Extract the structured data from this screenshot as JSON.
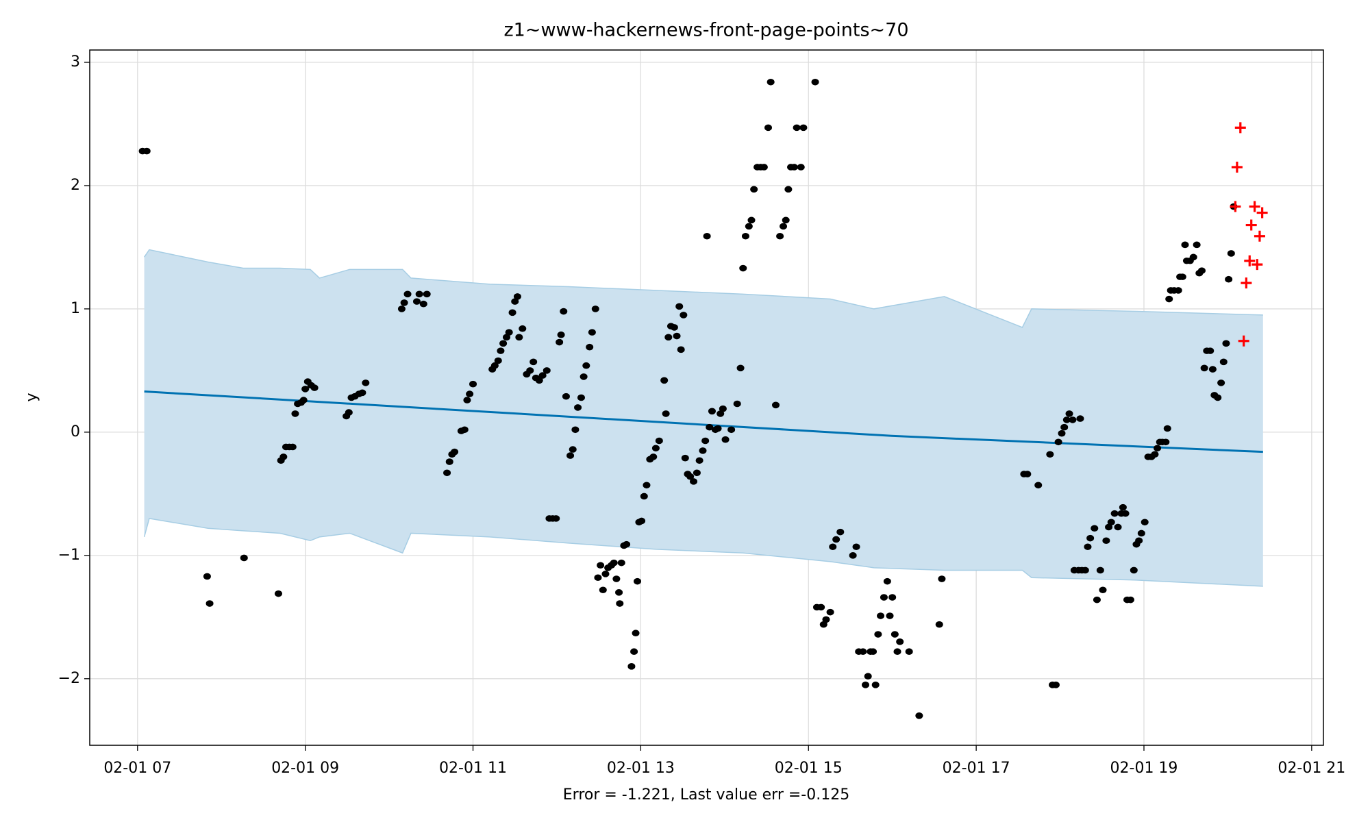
{
  "chart_data": {
    "type": "scatter",
    "title": "z1~www-hackernews-front-page-points~70",
    "xlabel": "Error = -1.221, Last value err =-0.125",
    "ylabel": "y",
    "xlim": [
      6.43,
      21.14
    ],
    "ylim": [
      -2.54,
      3.1
    ],
    "xticks": [
      {
        "value": 7,
        "label": "02-01 07"
      },
      {
        "value": 9,
        "label": "02-01 09"
      },
      {
        "value": 11,
        "label": "02-01 11"
      },
      {
        "value": 13,
        "label": "02-01 13"
      },
      {
        "value": 15,
        "label": "02-01 15"
      },
      {
        "value": 17,
        "label": "02-01 17"
      },
      {
        "value": 19,
        "label": "02-01 19"
      },
      {
        "value": 21,
        "label": "02-01 21"
      }
    ],
    "yticks": [
      {
        "value": -2,
        "label": "−2"
      },
      {
        "value": -1,
        "label": "−1"
      },
      0,
      1,
      2,
      3
    ],
    "grid": true,
    "band": {
      "color": "#cce1ef",
      "edge_color": "#a6cde4",
      "x": [
        7.08,
        7.14,
        7.84,
        8.26,
        8.7,
        9.06,
        9.17,
        9.53,
        10.16,
        10.26,
        11.2,
        12.14,
        13.18,
        14.22,
        15.26,
        15.78,
        16.62,
        17.55,
        17.66,
        18.91,
        20.42
      ],
      "upper": [
        1.42,
        1.48,
        1.38,
        1.33,
        1.33,
        1.32,
        1.25,
        1.32,
        1.32,
        1.25,
        1.2,
        1.18,
        1.15,
        1.12,
        1.08,
        1.0,
        1.1,
        0.85,
        1.0,
        0.98,
        0.95
      ],
      "lower": [
        -0.85,
        -0.7,
        -0.78,
        -0.8,
        -0.82,
        -0.88,
        -0.85,
        -0.82,
        -0.98,
        -0.82,
        -0.85,
        -0.9,
        -0.95,
        -0.98,
        -1.05,
        -1.1,
        -1.12,
        -1.12,
        -1.18,
        -1.2,
        -1.25
      ]
    },
    "trend": {
      "color": "#0072b2",
      "x": [
        7.08,
        15.99,
        20.42
      ],
      "values": [
        0.33,
        -0.03,
        -0.16
      ]
    },
    "series": [
      {
        "color": "#000000",
        "marker": "dot",
        "x": [
          7.06,
          7.11,
          7.83,
          7.86,
          8.27,
          8.68,
          8.71,
          8.74,
          8.77,
          8.81,
          8.85,
          8.88,
          8.91,
          8.95,
          8.98,
          9.0,
          9.03,
          9.07,
          9.11,
          9.49,
          9.52,
          9.55,
          9.59,
          9.64,
          9.68,
          9.72,
          10.15,
          10.18,
          10.22,
          10.33,
          10.36,
          10.41,
          10.45,
          10.69,
          10.72,
          10.75,
          10.78,
          10.86,
          10.9,
          10.93,
          10.96,
          11.0,
          11.23,
          11.26,
          11.3,
          11.33,
          11.36,
          11.4,
          11.43,
          11.47,
          11.5,
          11.53,
          11.55,
          11.59,
          11.64,
          11.68,
          11.72,
          11.75,
          11.79,
          11.83,
          11.88,
          11.91,
          11.95,
          11.99,
          12.03,
          12.05,
          12.08,
          12.11,
          12.16,
          12.19,
          12.22,
          12.25,
          12.29,
          12.32,
          12.35,
          12.39,
          12.42,
          12.46,
          12.49,
          12.52,
          12.55,
          12.58,
          12.61,
          12.65,
          12.68,
          12.71,
          12.74,
          12.75,
          12.77,
          12.8,
          12.83,
          12.89,
          12.92,
          12.94,
          12.96,
          12.98,
          13.01,
          13.04,
          13.07,
          13.11,
          13.15,
          13.18,
          13.22,
          13.28,
          13.3,
          13.33,
          13.36,
          13.4,
          13.43,
          13.46,
          13.48,
          13.51,
          13.53,
          13.56,
          13.59,
          13.63,
          13.67,
          13.7,
          13.74,
          13.77,
          13.79,
          13.82,
          13.85,
          13.89,
          13.92,
          13.95,
          13.98,
          14.01,
          14.08,
          14.15,
          14.19,
          14.22,
          14.25,
          14.29,
          14.32,
          14.35,
          14.39,
          14.43,
          14.47,
          14.52,
          14.55,
          14.61,
          14.66,
          14.7,
          14.73,
          14.76,
          14.79,
          14.83,
          14.86,
          14.91,
          14.94,
          15.08,
          15.1,
          15.15,
          15.18,
          15.21,
          15.26,
          15.29,
          15.33,
          15.38,
          15.53,
          15.57,
          15.6,
          15.65,
          15.68,
          15.71,
          15.74,
          15.77,
          15.8,
          15.83,
          15.86,
          15.9,
          15.94,
          15.97,
          16.0,
          16.03,
          16.06,
          16.09,
          16.2,
          16.32,
          16.56,
          16.59,
          17.57,
          17.61,
          17.74,
          17.88,
          17.91,
          17.95,
          17.98,
          18.02,
          18.05,
          18.08,
          18.11,
          18.15,
          18.17,
          18.22,
          18.24,
          18.26,
          18.3,
          18.33,
          18.36,
          18.41,
          18.44,
          18.48,
          18.51,
          18.55,
          18.58,
          18.61,
          18.65,
          18.69,
          18.73,
          18.75,
          18.78,
          18.8,
          18.84,
          18.88,
          18.91,
          18.94,
          18.97,
          19.01,
          19.05,
          19.09,
          19.13,
          19.16,
          19.19,
          19.22,
          19.26,
          19.28,
          19.3,
          19.32,
          19.36,
          19.41,
          19.43,
          19.46,
          19.49,
          19.51,
          19.55,
          19.59,
          19.63,
          19.66,
          19.69,
          19.72,
          19.75,
          19.79,
          19.82,
          19.84,
          19.88,
          19.92,
          19.95,
          19.98,
          20.01,
          20.04,
          20.07
        ],
        "values": [
          2.28,
          2.28,
          -1.17,
          -1.39,
          -1.02,
          -1.31,
          -0.23,
          -0.2,
          -0.12,
          -0.12,
          -0.12,
          0.15,
          0.23,
          0.24,
          0.26,
          0.35,
          0.41,
          0.38,
          0.36,
          0.13,
          0.16,
          0.28,
          0.29,
          0.31,
          0.32,
          0.4,
          1.0,
          1.05,
          1.12,
          1.06,
          1.12,
          1.04,
          1.12,
          -0.33,
          -0.24,
          -0.18,
          -0.16,
          0.01,
          0.02,
          0.26,
          0.31,
          0.39,
          0.51,
          0.54,
          0.58,
          0.66,
          0.72,
          0.77,
          0.81,
          0.97,
          1.06,
          1.1,
          0.77,
          0.84,
          0.47,
          0.5,
          0.57,
          0.44,
          0.42,
          0.46,
          0.5,
          -0.7,
          -0.7,
          -0.7,
          0.73,
          0.79,
          0.98,
          0.29,
          -0.19,
          -0.14,
          0.02,
          0.2,
          0.28,
          0.45,
          0.54,
          0.69,
          0.81,
          1.0,
          -1.18,
          -1.08,
          -1.28,
          -1.15,
          -1.1,
          -1.08,
          -1.06,
          -1.19,
          -1.3,
          -1.39,
          -1.06,
          -0.92,
          -0.91,
          -1.9,
          -1.78,
          -1.63,
          -1.21,
          -0.73,
          -0.72,
          -0.52,
          -0.43,
          -0.22,
          -0.2,
          -0.13,
          -0.07,
          0.42,
          0.15,
          0.77,
          0.86,
          0.85,
          0.78,
          1.02,
          0.67,
          0.95,
          -0.21,
          -0.34,
          -0.36,
          -0.4,
          -0.33,
          -0.23,
          -0.15,
          -0.07,
          1.59,
          0.04,
          0.17,
          0.02,
          0.03,
          0.15,
          0.19,
          -0.06,
          0.02,
          0.23,
          0.52,
          1.33,
          1.59,
          1.67,
          1.72,
          1.97,
          2.15,
          2.15,
          2.15,
          2.47,
          2.84,
          0.22,
          1.59,
          1.67,
          1.72,
          1.97,
          2.15,
          2.15,
          2.47,
          2.15,
          2.47,
          2.84,
          -1.42,
          -1.42,
          -1.56,
          -1.52,
          -1.46,
          -0.93,
          -0.87,
          -0.81,
          -1.0,
          -0.93,
          -1.78,
          -1.78,
          -2.05,
          -1.98,
          -1.78,
          -1.78,
          -2.05,
          -1.64,
          -1.49,
          -1.34,
          -1.21,
          -1.49,
          -1.34,
          -1.64,
          -1.78,
          -1.7,
          -1.78,
          -2.3,
          -1.56,
          -1.19,
          -0.34,
          -0.34,
          -0.43,
          -0.18,
          -2.05,
          -2.05,
          -0.08,
          -0.01,
          0.04,
          0.1,
          0.15,
          0.1,
          -1.12,
          -1.12,
          0.11,
          -1.12,
          -1.12,
          -0.93,
          -0.86,
          -0.78,
          -1.36,
          -1.12,
          -1.28,
          -0.88,
          -0.77,
          -0.73,
          -0.66,
          -0.77,
          -0.66,
          -0.61,
          -0.66,
          -1.36,
          -1.36,
          -1.12,
          -0.91,
          -0.88,
          -0.82,
          -0.73,
          -0.2,
          -0.2,
          -0.18,
          -0.13,
          -0.08,
          -0.08,
          -0.08,
          0.03,
          1.08,
          1.15,
          1.15,
          1.15,
          1.26,
          1.26,
          1.52,
          1.39,
          1.39,
          1.42,
          1.52,
          1.29,
          1.31,
          0.52,
          0.66,
          0.66,
          0.51,
          0.3,
          0.28,
          0.4,
          0.57,
          0.72,
          1.24,
          1.45,
          1.83
        ]
      },
      {
        "color": "#ff0000",
        "marker": "plus",
        "x": [
          20.09,
          20.11,
          20.15,
          20.19,
          20.22,
          20.26,
          20.28,
          20.32,
          20.35,
          20.38,
          20.41
        ],
        "values": [
          1.83,
          2.15,
          2.47,
          0.74,
          1.21,
          1.39,
          1.68,
          1.83,
          1.36,
          1.59,
          1.78
        ]
      }
    ]
  }
}
